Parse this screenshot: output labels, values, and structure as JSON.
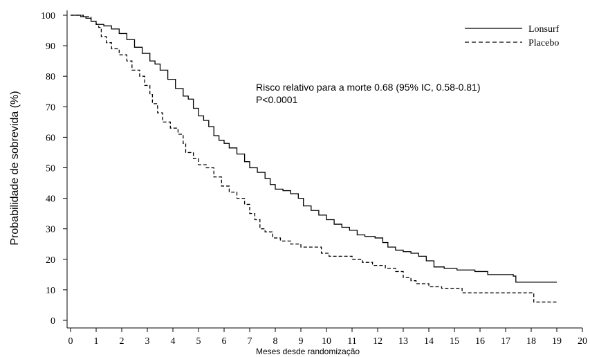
{
  "chart_data": {
    "type": "line",
    "title": "",
    "xlabel": "Meses desde randomização",
    "ylabel": "Probabilidade de sobrevida (%)",
    "xlim": [
      0,
      20
    ],
    "ylim": [
      0,
      100
    ],
    "x_ticks": [
      0,
      1,
      2,
      3,
      4,
      5,
      6,
      7,
      8,
      9,
      10,
      11,
      12,
      13,
      14,
      15,
      16,
      17,
      18,
      19,
      20
    ],
    "y_ticks": [
      0,
      10,
      20,
      30,
      40,
      50,
      60,
      70,
      80,
      90,
      100
    ],
    "grid": false,
    "legend_position": "top-right",
    "annotation": {
      "line1": "Risco relativo para a morte 0.68 (95% IC, 0.58-0.81)",
      "line2": "P<0.0001"
    },
    "series": [
      {
        "name": "Lonsurf",
        "style": "solid",
        "color": "#000000",
        "points": [
          [
            0,
            100
          ],
          [
            0.4,
            99.5
          ],
          [
            0.6,
            99
          ],
          [
            0.8,
            98
          ],
          [
            1,
            97
          ],
          [
            1.3,
            96.5
          ],
          [
            1.6,
            95.5
          ],
          [
            1.9,
            94
          ],
          [
            2.2,
            92
          ],
          [
            2.5,
            89.5
          ],
          [
            2.8,
            87.5
          ],
          [
            3.1,
            85
          ],
          [
            3.3,
            84
          ],
          [
            3.5,
            82
          ],
          [
            3.8,
            79
          ],
          [
            4.1,
            76
          ],
          [
            4.4,
            73.5
          ],
          [
            4.6,
            72.5
          ],
          [
            4.8,
            69.5
          ],
          [
            5.0,
            67
          ],
          [
            5.2,
            65.5
          ],
          [
            5.4,
            63.5
          ],
          [
            5.6,
            60.5
          ],
          [
            5.8,
            59
          ],
          [
            6.0,
            58
          ],
          [
            6.2,
            56.5
          ],
          [
            6.5,
            54.5
          ],
          [
            6.8,
            52
          ],
          [
            7.0,
            50
          ],
          [
            7.3,
            48.5
          ],
          [
            7.6,
            46.5
          ],
          [
            7.8,
            44.5
          ],
          [
            8.0,
            43
          ],
          [
            8.3,
            42.5
          ],
          [
            8.6,
            41.5
          ],
          [
            8.9,
            40
          ],
          [
            9.1,
            37.5
          ],
          [
            9.4,
            36
          ],
          [
            9.7,
            34.5
          ],
          [
            10.0,
            33
          ],
          [
            10.3,
            31.5
          ],
          [
            10.6,
            30.5
          ],
          [
            10.9,
            29.5
          ],
          [
            11.2,
            28
          ],
          [
            11.5,
            27.5
          ],
          [
            11.9,
            27
          ],
          [
            12.2,
            25.5
          ],
          [
            12.4,
            24
          ],
          [
            12.7,
            23
          ],
          [
            13.0,
            22.5
          ],
          [
            13.3,
            22
          ],
          [
            13.6,
            21
          ],
          [
            13.9,
            19.5
          ],
          [
            14.2,
            17.5
          ],
          [
            14.6,
            17
          ],
          [
            15.1,
            16.5
          ],
          [
            15.8,
            16
          ],
          [
            16.3,
            15
          ],
          [
            17.3,
            14.5
          ],
          [
            17.4,
            12.5
          ],
          [
            19,
            12.5
          ]
        ]
      },
      {
        "name": "Placebo",
        "style": "dashed",
        "color": "#000000",
        "points": [
          [
            0,
            100
          ],
          [
            0.5,
            99.5
          ],
          [
            0.8,
            98
          ],
          [
            1.0,
            97
          ],
          [
            1.1,
            96
          ],
          [
            1.2,
            93
          ],
          [
            1.4,
            91
          ],
          [
            1.6,
            89
          ],
          [
            1.9,
            87
          ],
          [
            2.2,
            85
          ],
          [
            2.4,
            82
          ],
          [
            2.7,
            80
          ],
          [
            2.9,
            77
          ],
          [
            3.1,
            74
          ],
          [
            3.2,
            71
          ],
          [
            3.4,
            68
          ],
          [
            3.6,
            65
          ],
          [
            3.9,
            63
          ],
          [
            4.2,
            61
          ],
          [
            4.4,
            58
          ],
          [
            4.5,
            55
          ],
          [
            4.8,
            53
          ],
          [
            5.0,
            51
          ],
          [
            5.3,
            50
          ],
          [
            5.6,
            47
          ],
          [
            5.9,
            44
          ],
          [
            6.2,
            42
          ],
          [
            6.5,
            40
          ],
          [
            6.8,
            38
          ],
          [
            7.0,
            35
          ],
          [
            7.2,
            33
          ],
          [
            7.4,
            30
          ],
          [
            7.6,
            29
          ],
          [
            7.9,
            27
          ],
          [
            8.2,
            26
          ],
          [
            8.6,
            25
          ],
          [
            9.0,
            24
          ],
          [
            9.4,
            24
          ],
          [
            9.8,
            22
          ],
          [
            10.1,
            21
          ],
          [
            10.6,
            21
          ],
          [
            11.0,
            20
          ],
          [
            11.4,
            19
          ],
          [
            11.8,
            18
          ],
          [
            12.3,
            17
          ],
          [
            12.7,
            16
          ],
          [
            13.0,
            14
          ],
          [
            13.3,
            13
          ],
          [
            13.5,
            12
          ],
          [
            14.0,
            11
          ],
          [
            14.5,
            10.5
          ],
          [
            15.0,
            10.5
          ],
          [
            15.3,
            9
          ],
          [
            16.0,
            9
          ],
          [
            17.0,
            9
          ],
          [
            18.0,
            9
          ],
          [
            18.1,
            6
          ],
          [
            19,
            6
          ]
        ]
      }
    ]
  }
}
